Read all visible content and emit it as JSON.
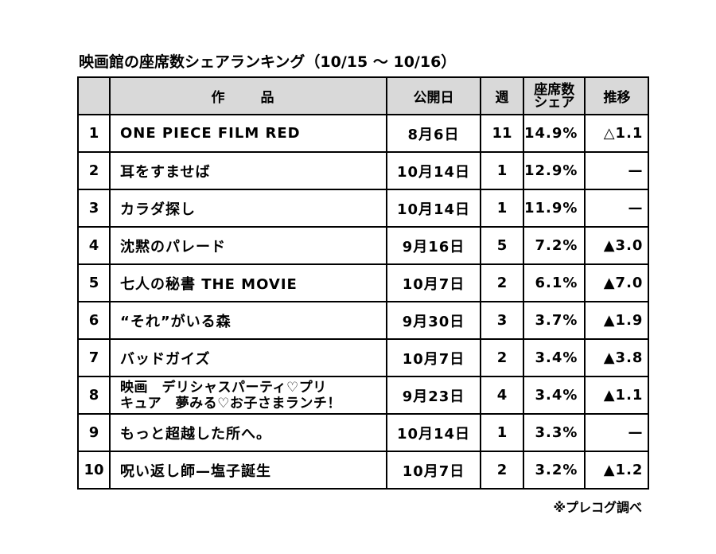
{
  "title": "映画館の座席数シェアランキング（10/15 〜 10/16）",
  "headers": {
    "rank": "",
    "title": "作　品",
    "release": "公開日",
    "weeks": "週",
    "seats_line1": "座席数",
    "seats_line2": "シェア",
    "trend": "推移"
  },
  "rows": [
    {
      "rank": "1",
      "title": "ONE PIECE FILM RED",
      "release": "8月6日",
      "weeks": "11",
      "share": "14.9%",
      "trend": "△1.1"
    },
    {
      "rank": "2",
      "title": "耳をすませば",
      "release": "10月14日",
      "weeks": "1",
      "share": "12.9%",
      "trend": "—"
    },
    {
      "rank": "3",
      "title": "カラダ探し",
      "release": "10月14日",
      "weeks": "1",
      "share": "11.9%",
      "trend": "—"
    },
    {
      "rank": "4",
      "title": "沈黙のパレード",
      "release": "9月16日",
      "weeks": "5",
      "share": "7.2%",
      "trend": "▲3.0"
    },
    {
      "rank": "5",
      "title": "七人の秘書 THE MOVIE",
      "release": "10月7日",
      "weeks": "2",
      "share": "6.1%",
      "trend": "▲7.0"
    },
    {
      "rank": "6",
      "title": "“それ”がいる森",
      "release": "9月30日",
      "weeks": "3",
      "share": "3.7%",
      "trend": "▲1.9"
    },
    {
      "rank": "7",
      "title": "バッドガイズ",
      "release": "10月7日",
      "weeks": "2",
      "share": "3.4%",
      "trend": "▲3.8"
    },
    {
      "rank": "8",
      "title_line1": "映画　デリシャスパーティ♡プリ",
      "title_line2": "キュア　夢みる♡お子さまランチ！",
      "release": "9月23日",
      "weeks": "4",
      "share": "3.4%",
      "trend": "▲1.1"
    },
    {
      "rank": "9",
      "title": "もっと超越した所へ。",
      "release": "10月14日",
      "weeks": "1",
      "share": "3.3%",
      "trend": "—"
    },
    {
      "rank": "10",
      "title": "呪い返し師—塩子誕生",
      "release": "10月7日",
      "weeks": "2",
      "share": "3.2%",
      "trend": "▲1.2"
    }
  ],
  "source": "※プレコグ調べ",
  "colors": {
    "header_bg": "#d9d9d9",
    "border": "#000000",
    "text": "#000000",
    "background": "#ffffff"
  }
}
